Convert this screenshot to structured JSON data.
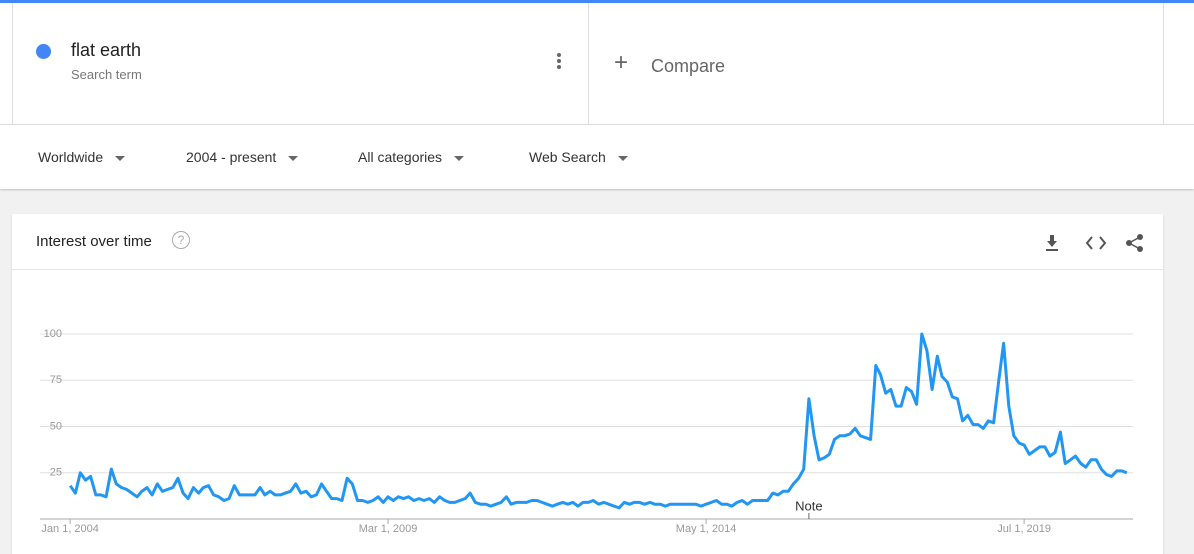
{
  "header": {
    "term": "flat earth",
    "term_caption": "Search term",
    "compare": "Compare"
  },
  "filters": [
    "Worldwide",
    "2004 - present",
    "All categories",
    "Web Search"
  ],
  "card": {
    "title": "Interest over time"
  },
  "chart_data": {
    "type": "line",
    "color": "#2196f3",
    "grid": true,
    "annotations": [
      {
        "text": "Note",
        "x": "2016-01-01"
      }
    ],
    "xlim": [
      "2003-07-06",
      "2021-04-07"
    ],
    "xticks": [
      {
        "value": "2004-01-01",
        "label": "Jan 1, 2004"
      },
      {
        "value": "2009-03-01",
        "label": "Mar 1, 2009"
      },
      {
        "value": "2014-05-01",
        "label": "May 1, 2014"
      },
      {
        "value": "2019-07-01",
        "label": "Jul 1, 2019"
      }
    ],
    "ylim": [
      0,
      100
    ],
    "yticks": [
      25,
      50,
      75,
      100
    ],
    "x": [
      "2004-01-01",
      "2004-02-01",
      "2004-03-01",
      "2004-04-01",
      "2004-05-01",
      "2004-06-01",
      "2004-07-01",
      "2004-08-01",
      "2004-09-01",
      "2004-10-01",
      "2004-11-01",
      "2004-12-01",
      "2005-01-01",
      "2005-02-01",
      "2005-03-01",
      "2005-04-01",
      "2005-05-01",
      "2005-06-01",
      "2005-07-01",
      "2005-08-01",
      "2005-09-01",
      "2005-10-01",
      "2005-11-01",
      "2005-12-01",
      "2006-01-01",
      "2006-02-01",
      "2006-03-01",
      "2006-04-01",
      "2006-05-01",
      "2006-06-01",
      "2006-07-01",
      "2006-08-01",
      "2006-09-01",
      "2006-10-01",
      "2006-11-01",
      "2006-12-01",
      "2007-01-01",
      "2007-02-01",
      "2007-03-01",
      "2007-04-01",
      "2007-05-01",
      "2007-06-01",
      "2007-07-01",
      "2007-08-01",
      "2007-09-01",
      "2007-10-01",
      "2007-11-01",
      "2007-12-01",
      "2008-01-01",
      "2008-02-01",
      "2008-03-01",
      "2008-04-01",
      "2008-05-01",
      "2008-06-01",
      "2008-07-01",
      "2008-08-01",
      "2008-09-01",
      "2008-10-01",
      "2008-11-01",
      "2008-12-01",
      "2009-01-01",
      "2009-02-01",
      "2009-03-01",
      "2009-04-01",
      "2009-05-01",
      "2009-06-01",
      "2009-07-01",
      "2009-08-01",
      "2009-09-01",
      "2009-10-01",
      "2009-11-01",
      "2009-12-01",
      "2010-01-01",
      "2010-02-01",
      "2010-03-01",
      "2010-04-01",
      "2010-05-01",
      "2010-06-01",
      "2010-07-01",
      "2010-08-01",
      "2010-09-01",
      "2010-10-01",
      "2010-11-01",
      "2010-12-01",
      "2011-01-01",
      "2011-02-01",
      "2011-03-01",
      "2011-04-01",
      "2011-05-01",
      "2011-06-01",
      "2011-07-01",
      "2011-08-01",
      "2011-09-01",
      "2011-10-01",
      "2011-11-01",
      "2011-12-01",
      "2012-01-01",
      "2012-02-01",
      "2012-03-01",
      "2012-04-01",
      "2012-05-01",
      "2012-06-01",
      "2012-07-01",
      "2012-08-01",
      "2012-09-01",
      "2012-10-01",
      "2012-11-01",
      "2012-12-01",
      "2013-01-01",
      "2013-02-01",
      "2013-03-01",
      "2013-04-01",
      "2013-05-01",
      "2013-06-01",
      "2013-07-01",
      "2013-08-01",
      "2013-09-01",
      "2013-10-01",
      "2013-11-01",
      "2013-12-01",
      "2014-01-01",
      "2014-02-01",
      "2014-03-01",
      "2014-04-01",
      "2014-05-01",
      "2014-06-01",
      "2014-07-01",
      "2014-08-01",
      "2014-09-01",
      "2014-10-01",
      "2014-11-01",
      "2014-12-01",
      "2015-01-01",
      "2015-02-01",
      "2015-03-01",
      "2015-04-01",
      "2015-05-01",
      "2015-06-01",
      "2015-07-01",
      "2015-08-01",
      "2015-09-01",
      "2015-10-01",
      "2015-11-01",
      "2015-12-01",
      "2016-01-01",
      "2016-02-01",
      "2016-03-01",
      "2016-04-01",
      "2016-05-01",
      "2016-06-01",
      "2016-07-01",
      "2016-08-01",
      "2016-09-01",
      "2016-10-01",
      "2016-11-01",
      "2016-12-01",
      "2017-01-01",
      "2017-02-01",
      "2017-03-01",
      "2017-04-01",
      "2017-05-01",
      "2017-06-01",
      "2017-07-01",
      "2017-08-01",
      "2017-09-01",
      "2017-10-01",
      "2017-11-01",
      "2017-12-01",
      "2018-01-01",
      "2018-02-01",
      "2018-03-01",
      "2018-04-01",
      "2018-05-01",
      "2018-06-01",
      "2018-07-01",
      "2018-08-01",
      "2018-09-01",
      "2018-10-01",
      "2018-11-01",
      "2018-12-01",
      "2019-01-01",
      "2019-02-01",
      "2019-03-01",
      "2019-04-01",
      "2019-05-01",
      "2019-06-01",
      "2019-07-01",
      "2019-08-01",
      "2019-09-01",
      "2019-10-01",
      "2019-11-01",
      "2019-12-01",
      "2020-01-01",
      "2020-02-01",
      "2020-03-01",
      "2020-04-01",
      "2020-05-01",
      "2020-06-01",
      "2020-07-01",
      "2020-08-01",
      "2020-09-01",
      "2020-10-01",
      "2020-11-01",
      "2020-12-01",
      "2021-01-01",
      "2021-02-01",
      "2021-03-01"
    ],
    "series": [
      {
        "name": "flat earth",
        "color": "#2196f3",
        "values": [
          18,
          14,
          25,
          21,
          23,
          13,
          13,
          12,
          27,
          19,
          17,
          16,
          14,
          12,
          15,
          17,
          13,
          19,
          15,
          16,
          17,
          22,
          14,
          11,
          17,
          14,
          17,
          18,
          13,
          12,
          10,
          11,
          18,
          13,
          13,
          13,
          13,
          17,
          13,
          15,
          13,
          13,
          14,
          15,
          19,
          14,
          15,
          12,
          13,
          19,
          15,
          11,
          11,
          10,
          22,
          19,
          10,
          10,
          9,
          10,
          12,
          9,
          12,
          10,
          12,
          11,
          12,
          10,
          11,
          10,
          11,
          9,
          12,
          10,
          9,
          9,
          10,
          11,
          14,
          9,
          8,
          8,
          7,
          8,
          9,
          12,
          8,
          9,
          9,
          9,
          10,
          10,
          9,
          8,
          7,
          8,
          9,
          8,
          9,
          7,
          9,
          9,
          10,
          8,
          9,
          8,
          7,
          6,
          9,
          8,
          9,
          9,
          8,
          9,
          8,
          8,
          7,
          8,
          8,
          8,
          8,
          8,
          8,
          7,
          8,
          9,
          10,
          8,
          8,
          7,
          9,
          10,
          8,
          10,
          10,
          10,
          10,
          14,
          13,
          15,
          15,
          19,
          22,
          27,
          65,
          45,
          32,
          33,
          35,
          43,
          45,
          45,
          46,
          49,
          45,
          44,
          43,
          83,
          78,
          68,
          70,
          61,
          61,
          71,
          69,
          62,
          100,
          91,
          70,
          88,
          77,
          74,
          66,
          65,
          53,
          56,
          51,
          51,
          49,
          53,
          52,
          75,
          95,
          61,
          45,
          41,
          40,
          35,
          37,
          39,
          39,
          34,
          36,
          47,
          30,
          32,
          34,
          30,
          28,
          32,
          32,
          27,
          24,
          23,
          26,
          26,
          25
        ]
      }
    ]
  }
}
